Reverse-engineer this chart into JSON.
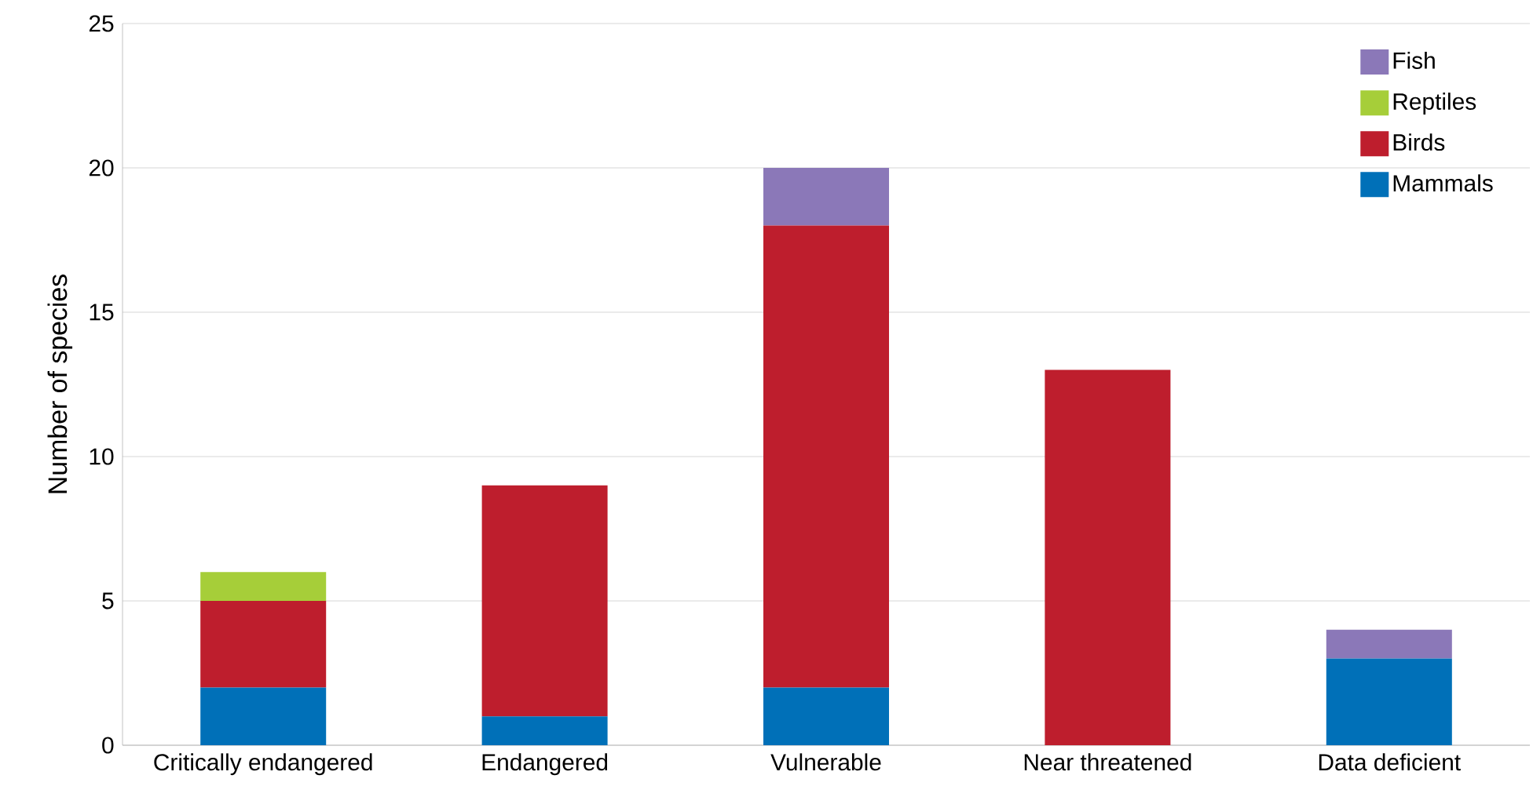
{
  "chart_data": {
    "type": "bar",
    "stacked": true,
    "ylabel": "Number of species",
    "categories": [
      "Critically endangered",
      "Endangered",
      "Vulnerable",
      "Near threatened",
      "Data deficient"
    ],
    "series": [
      {
        "name": "Mammals",
        "color": "#0070b8",
        "values": [
          2,
          1,
          2,
          0,
          3
        ]
      },
      {
        "name": "Birds",
        "color": "#be1e2d",
        "values": [
          3,
          8,
          16,
          13,
          0
        ]
      },
      {
        "name": "Reptiles",
        "color": "#a6ce39",
        "values": [
          1,
          0,
          0,
          0,
          0
        ]
      },
      {
        "name": "Fish",
        "color": "#8b78b8",
        "values": [
          0,
          0,
          2,
          0,
          1
        ]
      }
    ],
    "ylim": [
      0,
      25
    ],
    "yticks": [
      0,
      5,
      10,
      15,
      20,
      25
    ],
    "grid": "y",
    "legend": "top right"
  }
}
